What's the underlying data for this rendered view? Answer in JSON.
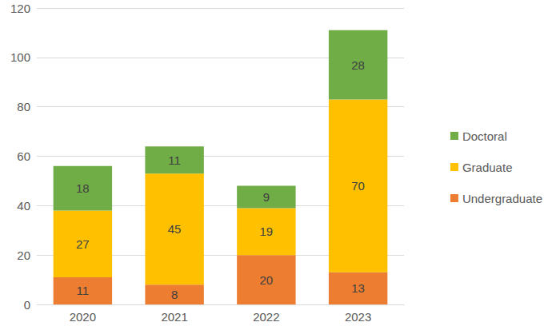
{
  "chart_data": {
    "type": "bar",
    "stacked": true,
    "data_labels": true,
    "grid": true,
    "legend": "right",
    "categories": [
      "2020",
      "2021",
      "2022",
      "2023"
    ],
    "series": [
      {
        "name": "Undergraduate",
        "color": "#ed7d31",
        "values": [
          11,
          8,
          20,
          13
        ]
      },
      {
        "name": "Graduate",
        "color": "#ffc000",
        "values": [
          27,
          45,
          19,
          70
        ]
      },
      {
        "name": "Doctoral",
        "color": "#70ad47",
        "values": [
          18,
          11,
          9,
          28
        ]
      }
    ],
    "ylim": [
      0,
      120
    ],
    "yticks": [
      0,
      20,
      40,
      60,
      80,
      100,
      120
    ]
  }
}
